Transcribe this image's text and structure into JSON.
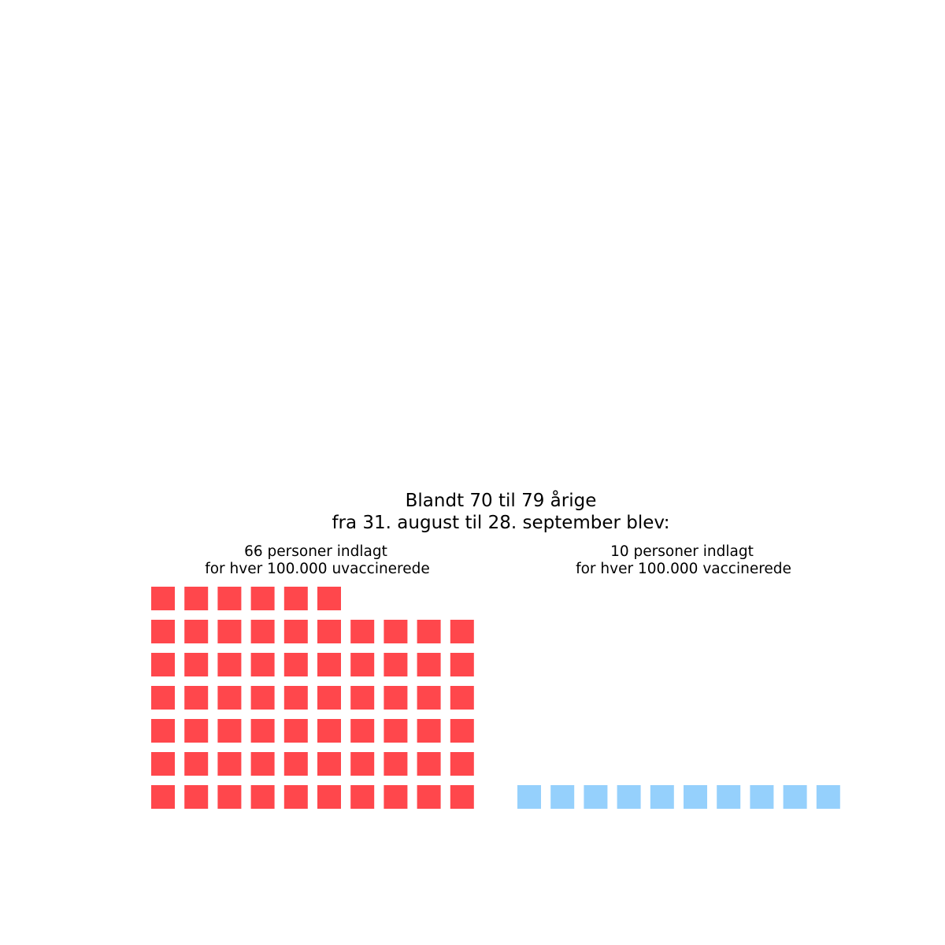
{
  "chart_data": {
    "type": "waffle",
    "title": [
      "Blandt 70 til 79 årige",
      "fra 31. august til 28. september blev:"
    ],
    "grid_columns": 10,
    "series": [
      {
        "value": 66,
        "label": [
          "66 personer indlagt",
          "for hver 100.000 uvaccinerede"
        ],
        "color": "#ff474c"
      },
      {
        "value": 10,
        "label": [
          "10 personer indlagt",
          "for hver 100.000 vaccinerede"
        ],
        "color": "#95d0fc"
      }
    ]
  }
}
